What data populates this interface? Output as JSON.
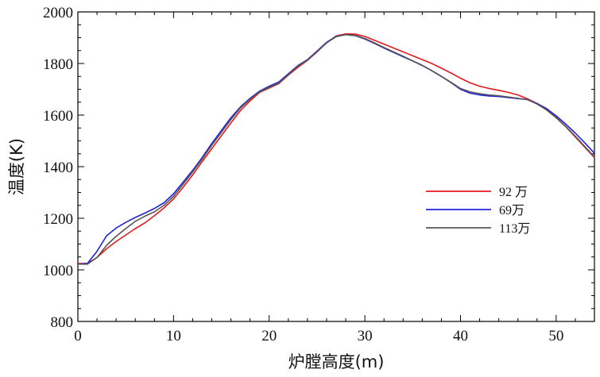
{
  "chart_data": {
    "type": "line",
    "xlabel": "炉膛高度(m)",
    "ylabel": "温度(K)",
    "xlim": [
      0,
      54
    ],
    "ylim": [
      800,
      2000
    ],
    "x_ticks": [
      0,
      10,
      20,
      30,
      40,
      50
    ],
    "y_ticks": [
      800,
      1000,
      1200,
      1400,
      1600,
      1800,
      2000
    ],
    "grid": false,
    "legend_position": "right-middle",
    "series": [
      {
        "name": "92 万",
        "color": "#e41a1c",
        "points": [
          [
            0,
            1025
          ],
          [
            1,
            1025
          ],
          [
            2,
            1048
          ],
          [
            3,
            1082
          ],
          [
            4,
            1110
          ],
          [
            5,
            1135
          ],
          [
            6,
            1160
          ],
          [
            7,
            1182
          ],
          [
            8,
            1210
          ],
          [
            9,
            1240
          ],
          [
            10,
            1275
          ],
          [
            11,
            1320
          ],
          [
            12,
            1368
          ],
          [
            13,
            1420
          ],
          [
            14,
            1470
          ],
          [
            15,
            1520
          ],
          [
            16,
            1570
          ],
          [
            17,
            1618
          ],
          [
            18,
            1655
          ],
          [
            19,
            1688
          ],
          [
            20,
            1705
          ],
          [
            21,
            1722
          ],
          [
            22,
            1755
          ],
          [
            23,
            1785
          ],
          [
            24,
            1812
          ],
          [
            25,
            1845
          ],
          [
            26,
            1880
          ],
          [
            27,
            1907
          ],
          [
            28,
            1915
          ],
          [
            29,
            1914
          ],
          [
            30,
            1905
          ],
          [
            31,
            1890
          ],
          [
            32,
            1875
          ],
          [
            33,
            1860
          ],
          [
            34,
            1845
          ],
          [
            35,
            1830
          ],
          [
            36,
            1815
          ],
          [
            37,
            1800
          ],
          [
            38,
            1782
          ],
          [
            39,
            1763
          ],
          [
            40,
            1743
          ],
          [
            41,
            1725
          ],
          [
            42,
            1712
          ],
          [
            43,
            1703
          ],
          [
            44,
            1696
          ],
          [
            45,
            1688
          ],
          [
            46,
            1678
          ],
          [
            47,
            1663
          ],
          [
            48,
            1645
          ],
          [
            49,
            1620
          ],
          [
            50,
            1590
          ],
          [
            51,
            1555
          ],
          [
            52,
            1515
          ],
          [
            53,
            1475
          ],
          [
            54,
            1435
          ]
        ]
      },
      {
        "name": "69万",
        "color": "#2222dd",
        "points": [
          [
            0,
            1022
          ],
          [
            1,
            1025
          ],
          [
            2,
            1072
          ],
          [
            3,
            1132
          ],
          [
            4,
            1162
          ],
          [
            5,
            1184
          ],
          [
            6,
            1203
          ],
          [
            7,
            1220
          ],
          [
            8,
            1238
          ],
          [
            9,
            1260
          ],
          [
            10,
            1295
          ],
          [
            11,
            1340
          ],
          [
            12,
            1386
          ],
          [
            13,
            1436
          ],
          [
            14,
            1490
          ],
          [
            15,
            1540
          ],
          [
            16,
            1590
          ],
          [
            17,
            1632
          ],
          [
            18,
            1665
          ],
          [
            19,
            1693
          ],
          [
            20,
            1712
          ],
          [
            21,
            1728
          ],
          [
            22,
            1760
          ],
          [
            23,
            1792
          ],
          [
            24,
            1815
          ],
          [
            25,
            1848
          ],
          [
            26,
            1882
          ],
          [
            27,
            1905
          ],
          [
            28,
            1912
          ],
          [
            29,
            1908
          ],
          [
            30,
            1895
          ],
          [
            31,
            1878
          ],
          [
            32,
            1860
          ],
          [
            33,
            1843
          ],
          [
            34,
            1826
          ],
          [
            35,
            1810
          ],
          [
            36,
            1793
          ],
          [
            37,
            1772
          ],
          [
            38,
            1750
          ],
          [
            39,
            1726
          ],
          [
            40,
            1700
          ],
          [
            41,
            1685
          ],
          [
            42,
            1678
          ],
          [
            43,
            1674
          ],
          [
            44,
            1672
          ],
          [
            45,
            1668
          ],
          [
            46,
            1664
          ],
          [
            47,
            1660
          ],
          [
            48,
            1645
          ],
          [
            49,
            1625
          ],
          [
            50,
            1597
          ],
          [
            51,
            1565
          ],
          [
            52,
            1530
          ],
          [
            53,
            1492
          ],
          [
            54,
            1452
          ]
        ]
      },
      {
        "name": "113万",
        "color": "#555555",
        "points": [
          [
            0,
            1022
          ],
          [
            1,
            1022
          ],
          [
            2,
            1048
          ],
          [
            3,
            1095
          ],
          [
            4,
            1130
          ],
          [
            5,
            1160
          ],
          [
            6,
            1188
          ],
          [
            7,
            1208
          ],
          [
            8,
            1225
          ],
          [
            9,
            1250
          ],
          [
            10,
            1285
          ],
          [
            11,
            1332
          ],
          [
            12,
            1380
          ],
          [
            13,
            1430
          ],
          [
            14,
            1483
          ],
          [
            15,
            1533
          ],
          [
            16,
            1583
          ],
          [
            17,
            1628
          ],
          [
            18,
            1662
          ],
          [
            19,
            1690
          ],
          [
            20,
            1708
          ],
          [
            21,
            1724
          ],
          [
            22,
            1757
          ],
          [
            23,
            1790
          ],
          [
            24,
            1813
          ],
          [
            25,
            1846
          ],
          [
            26,
            1880
          ],
          [
            27,
            1904
          ],
          [
            28,
            1912
          ],
          [
            29,
            1909
          ],
          [
            30,
            1897
          ],
          [
            31,
            1880
          ],
          [
            32,
            1862
          ],
          [
            33,
            1845
          ],
          [
            34,
            1828
          ],
          [
            35,
            1810
          ],
          [
            36,
            1792
          ],
          [
            37,
            1772
          ],
          [
            38,
            1750
          ],
          [
            39,
            1727
          ],
          [
            40,
            1703
          ],
          [
            41,
            1690
          ],
          [
            42,
            1683
          ],
          [
            43,
            1678
          ],
          [
            44,
            1675
          ],
          [
            45,
            1670
          ],
          [
            46,
            1665
          ],
          [
            47,
            1660
          ],
          [
            48,
            1643
          ],
          [
            49,
            1620
          ],
          [
            50,
            1590
          ],
          [
            51,
            1556
          ],
          [
            52,
            1518
          ],
          [
            53,
            1478
          ],
          [
            54,
            1438
          ]
        ]
      }
    ]
  }
}
